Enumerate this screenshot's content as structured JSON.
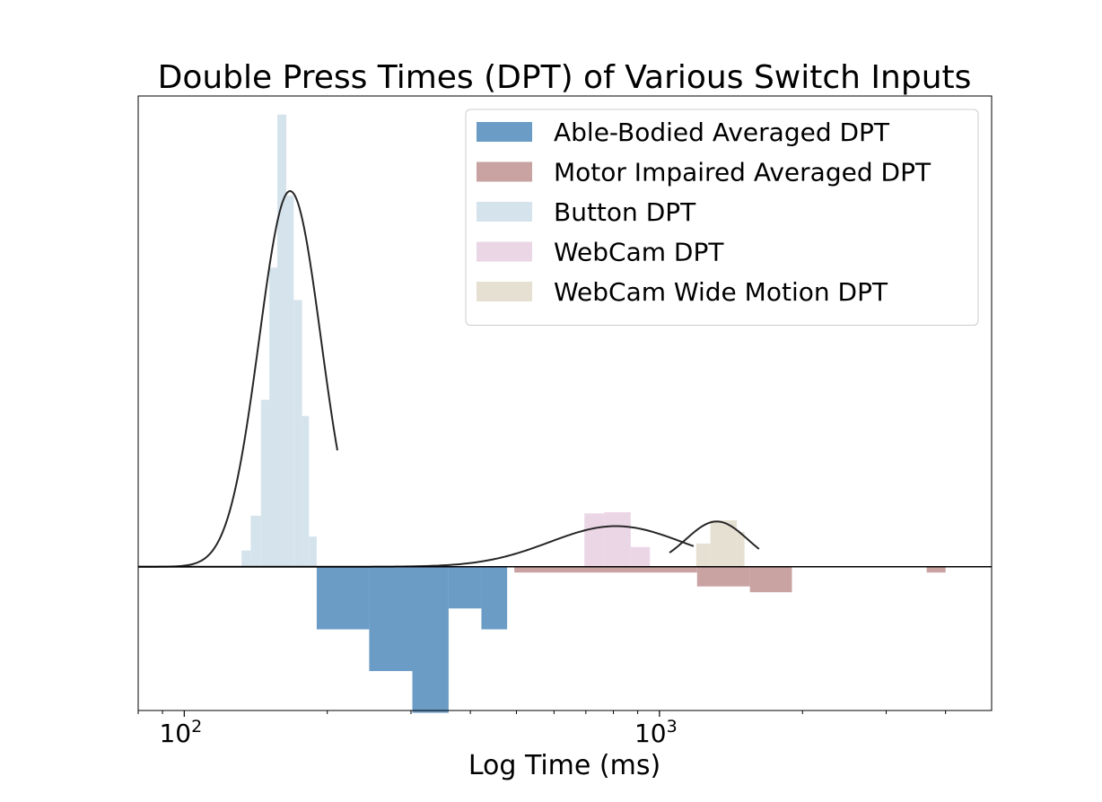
{
  "chart_data": {
    "type": "bar",
    "title": "Double Press Times (DPT) of Various Switch Inputs",
    "xlabel": "Log Time (ms)",
    "ylabel": "",
    "x_scale": "log",
    "xlim": [
      80,
      5000
    ],
    "ylim": [
      -0.62,
      2.03
    ],
    "grid": false,
    "legend_position": "top-right",
    "x_tick_labels": [
      {
        "value": 100,
        "base": "10",
        "exp": "2"
      },
      {
        "value": 1000,
        "base": "10",
        "exp": "3"
      }
    ],
    "x_minor_ticks": [
      80,
      90,
      200,
      300,
      400,
      500,
      600,
      700,
      800,
      900,
      2000,
      3000,
      4000
    ],
    "series": [
      {
        "name": "Able-Bodied Averaged DPT",
        "color": "#6b9cc6",
        "opacity": 1,
        "direction": "down",
        "bins": [
          {
            "x0": 190,
            "x1": 245,
            "v": 0.27
          },
          {
            "x0": 245,
            "x1": 302,
            "v": 0.45
          },
          {
            "x0": 302,
            "x1": 360,
            "v": 0.63
          },
          {
            "x0": 360,
            "x1": 422,
            "v": 0.18
          },
          {
            "x0": 422,
            "x1": 478,
            "v": 0.27
          }
        ]
      },
      {
        "name": "Motor Impaired Averaged DPT",
        "color": "#c9a2a2",
        "opacity": 1,
        "direction": "down",
        "bins": [
          {
            "x0": 495,
            "x1": 1200,
            "v": 0.025
          },
          {
            "x0": 1200,
            "x1": 1550,
            "v": 0.085
          },
          {
            "x0": 1550,
            "x1": 1900,
            "v": 0.11
          },
          {
            "x0": 3650,
            "x1": 4000,
            "v": 0.025
          }
        ]
      },
      {
        "name": "Button DPT",
        "color": "#d5e3ec",
        "opacity": 1,
        "direction": "up",
        "bins": [
          {
            "x0": 132,
            "x1": 138,
            "v": 0.07
          },
          {
            "x0": 138,
            "x1": 145,
            "v": 0.22
          },
          {
            "x0": 145,
            "x1": 151,
            "v": 0.72
          },
          {
            "x0": 151,
            "x1": 157,
            "v": 1.29
          },
          {
            "x0": 157,
            "x1": 164,
            "v": 1.95
          },
          {
            "x0": 164,
            "x1": 170,
            "v": 1.6
          },
          {
            "x0": 170,
            "x1": 177,
            "v": 1.15
          },
          {
            "x0": 177,
            "x1": 183,
            "v": 0.65
          },
          {
            "x0": 183,
            "x1": 190,
            "v": 0.13
          }
        ],
        "fit": {
          "mode": 167,
          "sigma": 0.065,
          "peak": 1.62,
          "x_min": 80,
          "x_max": 210
        }
      },
      {
        "name": "WebCam DPT",
        "color": "#ebd6e6",
        "opacity": 1,
        "direction": "up",
        "bins": [
          {
            "x0": 695,
            "x1": 765,
            "v": 0.23
          },
          {
            "x0": 765,
            "x1": 870,
            "v": 0.235
          },
          {
            "x0": 870,
            "x1": 955,
            "v": 0.085
          }
        ],
        "fit": {
          "mode": 810,
          "sigma": 0.14,
          "peak": 0.175,
          "x_min": 80,
          "x_max": 1180
        }
      },
      {
        "name": "WebCam Wide Motion DPT",
        "color": "#e5e0d1",
        "opacity": 1,
        "direction": "up",
        "bins": [
          {
            "x0": 1195,
            "x1": 1280,
            "v": 0.1
          },
          {
            "x0": 1280,
            "x1": 1455,
            "v": 0.2
          },
          {
            "x0": 1455,
            "x1": 1510,
            "v": 0.15
          }
        ],
        "fit": {
          "mode": 1320,
          "sigma": 0.065,
          "peak": 0.195,
          "x_min": 1050,
          "x_max": 1620
        }
      }
    ]
  }
}
